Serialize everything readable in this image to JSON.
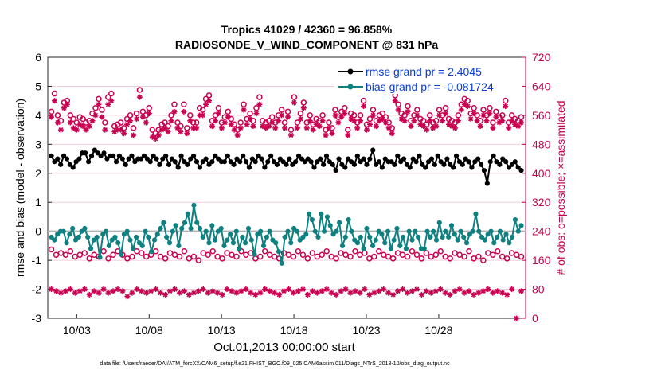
{
  "chart_data": {
    "type": "line",
    "title": "Tropics 41029 / 42360 = 96.858%",
    "subtitle": "RADIOSONDE_V_WIND_COMPONENT @ 831 hPa",
    "xlabel": "Oct.01,2013 00:00:00 start",
    "ylabel_left": "rmse and bias (model - observation)",
    "ylabel_right": "# of obs: o=possible; ×=assimilated",
    "footer": "data file: /Users/raeder/DAI/ATM_forcXX/CAM6_setup/f.e21.FHIST_BGC.f09_025.CAM6assim.011/Diags_NTrS_2013-10/obs_diag_output.nc",
    "ylim_left": [
      -3,
      6
    ],
    "ylim_right": [
      0,
      720
    ],
    "xlim": [
      1,
      34
    ],
    "left_ticks": [
      "-3",
      "-2",
      "-1",
      "0",
      "1",
      "2",
      "3",
      "4",
      "5",
      "6"
    ],
    "right_ticks": [
      "0",
      "80",
      "160",
      "240",
      "320",
      "400",
      "480",
      "560",
      "640",
      "720"
    ],
    "x_ticks": [
      {
        "x": 3,
        "label": "10/03"
      },
      {
        "x": 8,
        "label": "10/08"
      },
      {
        "x": 13,
        "label": "10/13"
      },
      {
        "x": 18,
        "label": "10/18"
      },
      {
        "x": 23,
        "label": "10/23"
      },
      {
        "x": 28,
        "label": "10/28"
      }
    ],
    "x_start": 1.25,
    "x_step": 0.25,
    "legend": [
      {
        "name": "rmse grand pr = 2.4045",
        "color": "#000000"
      },
      {
        "name": "bias grand pr = -0.081724",
        "color": "#0e8080"
      }
    ],
    "series": [
      {
        "name": "rmse",
        "axis": "left",
        "color": "#000000",
        "values": [
          2.6,
          2.4,
          2.5,
          2.3,
          2.6,
          2.5,
          2.3,
          2.2,
          2.4,
          2.5,
          2.7,
          2.7,
          2.4,
          2.6,
          2.8,
          2.7,
          2.6,
          2.7,
          2.5,
          2.6,
          2.6,
          2.4,
          2.6,
          2.5,
          2.3,
          2.5,
          2.6,
          2.4,
          2.5,
          2.5,
          2.6,
          2.5,
          2.4,
          2.6,
          2.5,
          2.3,
          2.5,
          2.6,
          2.3,
          2.5,
          2.4,
          2.2,
          2.6,
          2.4,
          2.3,
          2.5,
          2.6,
          2.4,
          2.2,
          2.4,
          2.5,
          2.3,
          2.4,
          2.6,
          2.5,
          2.4,
          2.4,
          2.6,
          2.4,
          2.3,
          2.5,
          2.4,
          2.6,
          2.4,
          2.2,
          2.5,
          2.4,
          2.6,
          2.5,
          2.2,
          2.4,
          2.6,
          2.4,
          2.3,
          2.5,
          2.4,
          2.3,
          2.5,
          2.3,
          2.4,
          2.6,
          2.5,
          2.4,
          2.5,
          2.4,
          2.2,
          2.4,
          2.5,
          2.3,
          2.6,
          2.4,
          2.3,
          2.1,
          2.5,
          2.3,
          2.2,
          2.5,
          2.4,
          2.3,
          2.6,
          2.4,
          2.5,
          2.3,
          2.5,
          2.8,
          2.3,
          2.4,
          2.2,
          2.5,
          2.4,
          2.4,
          2.3,
          2.6,
          2.4,
          2.5,
          2.3,
          2.2,
          2.5,
          2.4,
          2.6,
          2.3,
          2.2,
          2.4,
          2.5,
          2.3,
          2.6,
          2.4,
          2.3,
          2.5,
          2.3,
          2.2,
          2.6,
          2.4,
          2.3,
          2.5,
          2.4,
          2.2,
          2.4,
          2.5,
          2.3,
          2.1,
          1.65,
          2.4,
          2.6,
          2.4,
          2.3,
          2.5,
          2.4,
          2.2,
          2.3,
          2.4,
          2.2,
          2.1
        ]
      },
      {
        "name": "bias",
        "axis": "left",
        "color": "#0e8080",
        "values": [
          -0.2,
          -0.3,
          -0.1,
          0.0,
          0.0,
          -0.4,
          -0.1,
          0.1,
          -0.3,
          -0.2,
          0.0,
          0.1,
          -0.2,
          -0.6,
          -0.3,
          -0.2,
          -0.9,
          -0.1,
          0.0,
          -0.5,
          -0.3,
          -0.2,
          -0.4,
          -0.8,
          -0.1,
          0.0,
          -0.3,
          -0.6,
          -0.2,
          -0.4,
          -0.5,
          0.0,
          -0.2,
          -0.7,
          -0.3,
          -0.1,
          0.1,
          0.3,
          -0.2,
          -0.4,
          0.0,
          0.2,
          -0.5,
          0.1,
          0.3,
          0.6,
          0.1,
          0.9,
          0.3,
          0.1,
          -0.2,
          0.0,
          -0.4,
          0.2,
          -0.3,
          0.0,
          0.1,
          -0.5,
          -0.3,
          -0.1,
          -0.4,
          0.0,
          -0.6,
          -0.2,
          -0.4,
          0.1,
          -0.3,
          -0.8,
          -0.1,
          0.0,
          -0.5,
          -0.2,
          0.0,
          -0.3,
          -0.4,
          -0.7,
          -1.1,
          -0.2,
          0.0,
          -0.4,
          0.1,
          0.0,
          -0.3,
          -0.2,
          -0.1,
          0.6,
          0.4,
          0.0,
          -0.2,
          0.6,
          0.0,
          0.5,
          0.2,
          -0.1,
          0.0,
          0.3,
          -0.5,
          -0.2,
          0.4,
          0.0,
          -0.3,
          -0.4,
          -0.2,
          -0.6,
          0.1,
          -0.2,
          -0.5,
          -0.3,
          0.0,
          -0.1,
          -0.4,
          0.0,
          -0.6,
          -0.3,
          0.1,
          -0.5,
          -0.2,
          -0.6,
          0.0,
          -0.3,
          0.0,
          -0.2,
          -0.6,
          -0.6,
          0.0,
          -0.2,
          0.0,
          -0.3,
          0.3,
          -0.2,
          0.0,
          -0.2,
          0.2,
          -0.1,
          -0.3,
          0.0,
          -0.2,
          -0.4,
          -0.1,
          0.0,
          0.6,
          0.0,
          -0.2,
          -0.3,
          -0.1,
          0.0,
          -0.4,
          -0.2,
          0.0,
          -0.3,
          -0.1,
          -0.4,
          -0.2,
          0.4,
          0.0,
          0.2
        ]
      },
      {
        "name": "possible",
        "axis": "right",
        "color": "#c8004f",
        "marker": "o",
        "values": [
          570,
          620,
          560,
          545,
          595,
          600,
          560,
          550,
          540,
          555,
          550,
          540,
          545,
          565,
          580,
          605,
          575,
          540,
          610,
          620,
          530,
          535,
          540,
          525,
          550,
          560,
          525,
          565,
          630,
          570,
          560,
          580,
          520,
          510,
          520,
          535,
          540,
          530,
          560,
          590,
          540,
          530,
          590,
          525,
          560,
          540,
          540,
          580,
          575,
          605,
          615,
          545,
          560,
          580,
          540,
          555,
          570,
          550,
          535,
          520,
          540,
          590,
          550,
          565,
          545,
          580,
          610,
          545,
          540,
          545,
          555,
          540,
          560,
          575,
          540,
          570,
          520,
          610,
          540,
          565,
          595,
          540,
          560,
          535,
          550,
          545,
          560,
          520,
          540,
          525,
          575,
          555,
          570,
          580,
          520,
          565,
          560,
          540,
          560,
          600,
          535,
          550,
          575,
          545,
          560,
          565,
          555,
          540,
          525,
          615,
          590,
          565,
          560,
          585,
          545,
          560,
          575,
          550,
          545,
          535,
          560,
          540,
          545,
          575,
          560,
          580,
          550,
          545,
          540,
          560,
          590,
          605,
          600,
          565,
          580,
          560,
          545,
          575,
          560,
          580,
          540,
          570,
          555,
          560,
          600,
          540,
          560,
          550,
          545,
          555
        ]
      },
      {
        "name": "assimilated",
        "axis": "right",
        "color": "#c8004f",
        "marker": "x",
        "values": [
          555,
          600,
          540,
          520,
          580,
          590,
          540,
          525,
          520,
          535,
          530,
          520,
          530,
          545,
          560,
          590,
          555,
          520,
          590,
          600,
          515,
          520,
          520,
          510,
          535,
          545,
          505,
          550,
          610,
          555,
          540,
          565,
          500,
          495,
          505,
          520,
          525,
          515,
          545,
          570,
          525,
          515,
          570,
          510,
          545,
          525,
          525,
          560,
          560,
          590,
          600,
          530,
          545,
          565,
          525,
          540,
          555,
          535,
          520,
          505,
          525,
          575,
          535,
          550,
          530,
          565,
          590,
          530,
          525,
          530,
          540,
          525,
          545,
          560,
          525,
          555,
          505,
          595,
          525,
          550,
          580,
          525,
          545,
          520,
          535,
          530,
          545,
          505,
          525,
          510,
          560,
          540,
          555,
          565,
          505,
          550,
          545,
          525,
          545,
          585,
          520,
          535,
          560,
          530,
          545,
          550,
          540,
          525,
          510,
          600,
          575,
          550,
          545,
          570,
          530,
          545,
          560,
          535,
          530,
          520,
          545,
          525,
          530,
          560,
          545,
          565,
          535,
          530,
          525,
          545,
          575,
          590,
          585,
          550,
          565,
          545,
          530,
          560,
          545,
          565,
          525,
          555,
          540,
          545,
          585,
          525,
          545,
          535,
          530,
          540
        ]
      },
      {
        "name": "possible-low",
        "axis": "right",
        "color": "#c8004f",
        "marker": "o",
        "values": [
          190,
          175,
          180,
          175,
          185,
          170,
          175,
          180,
          165,
          175,
          170,
          185,
          165,
          175,
          185,
          175,
          165,
          170,
          185,
          180,
          170,
          175,
          185,
          170,
          165,
          180,
          175,
          170,
          185,
          165,
          170,
          160,
          180,
          175,
          185,
          170,
          165,
          180,
          175,
          170,
          185,
          175,
          180,
          165,
          170,
          185,
          175,
          170,
          165,
          180,
          175,
          170,
          185,
          175,
          165,
          180,
          170,
          175,
          185,
          170,
          165,
          180,
          175,
          170,
          185,
          175,
          180,
          165,
          170,
          185,
          175,
          170,
          165,
          180,
          175,
          170,
          185,
          175,
          165,
          180,
          170,
          175,
          185,
          170,
          165,
          180,
          175,
          170,
          185,
          165,
          170,
          160,
          180,
          175,
          185,
          170,
          165,
          180,
          175,
          170
        ]
      },
      {
        "name": "assimilated-low",
        "axis": "right",
        "color": "#c8004f",
        "marker": "x",
        "values": [
          80,
          75,
          70,
          75,
          80,
          70,
          75,
          80,
          65,
          75,
          70,
          80,
          70,
          75,
          80,
          75,
          60,
          70,
          80,
          75,
          70,
          75,
          80,
          70,
          65,
          75,
          80,
          70,
          75,
          65,
          70,
          75,
          80,
          70,
          75,
          70,
          65,
          80,
          75,
          70,
          75,
          80,
          70,
          65,
          70,
          80,
          75,
          70,
          65,
          75,
          80,
          70,
          75,
          80,
          65,
          75,
          70,
          75,
          80,
          70,
          65,
          75,
          80,
          70,
          75,
          70,
          80,
          65,
          70,
          75,
          80,
          70,
          65,
          75,
          80,
          70,
          75,
          80,
          65,
          75,
          70,
          75,
          80,
          70,
          65,
          75,
          80,
          70,
          75,
          65,
          70,
          75,
          80,
          70,
          75,
          70,
          65,
          80,
          0,
          75
        ]
      }
    ]
  }
}
